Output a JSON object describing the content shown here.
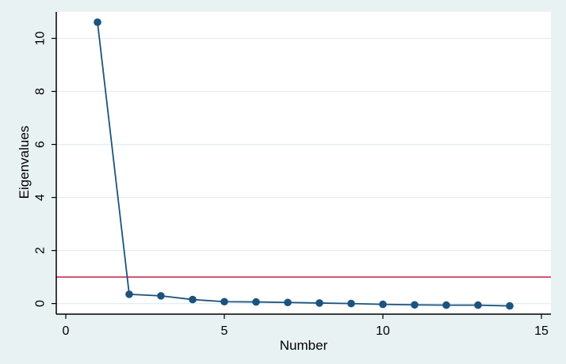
{
  "figure": {
    "background_color": "#e9f2f2",
    "plot_background_color": "#ffffff"
  },
  "chart_data": {
    "type": "line",
    "title": "",
    "xlabel": "Number",
    "ylabel": "Eigenvalues",
    "series": [
      {
        "name": "Eigenvalues",
        "x": [
          1,
          2,
          3,
          4,
          5,
          6,
          7,
          8,
          9,
          10,
          11,
          12,
          13,
          14
        ],
        "y": [
          10.61,
          0.35,
          0.29,
          0.15,
          0.07,
          0.06,
          0.04,
          0.02,
          0.0,
          -0.03,
          -0.05,
          -0.06,
          -0.06,
          -0.09
        ]
      }
    ],
    "reference_line": {
      "y": 1,
      "color": "#d13d62"
    },
    "x_ticks": [
      0,
      5,
      10,
      15
    ],
    "y_ticks": [
      0,
      2,
      4,
      6,
      8,
      10
    ],
    "xlim": [
      -0.3,
      15.3
    ],
    "ylim": [
      -0.4,
      11.0
    ],
    "grid": "horizontal-y",
    "legend": "none",
    "line_color": "#1c537e",
    "marker_color": "#1c537e",
    "grid_color": "#e2edf3",
    "axis_color": "#000000"
  }
}
